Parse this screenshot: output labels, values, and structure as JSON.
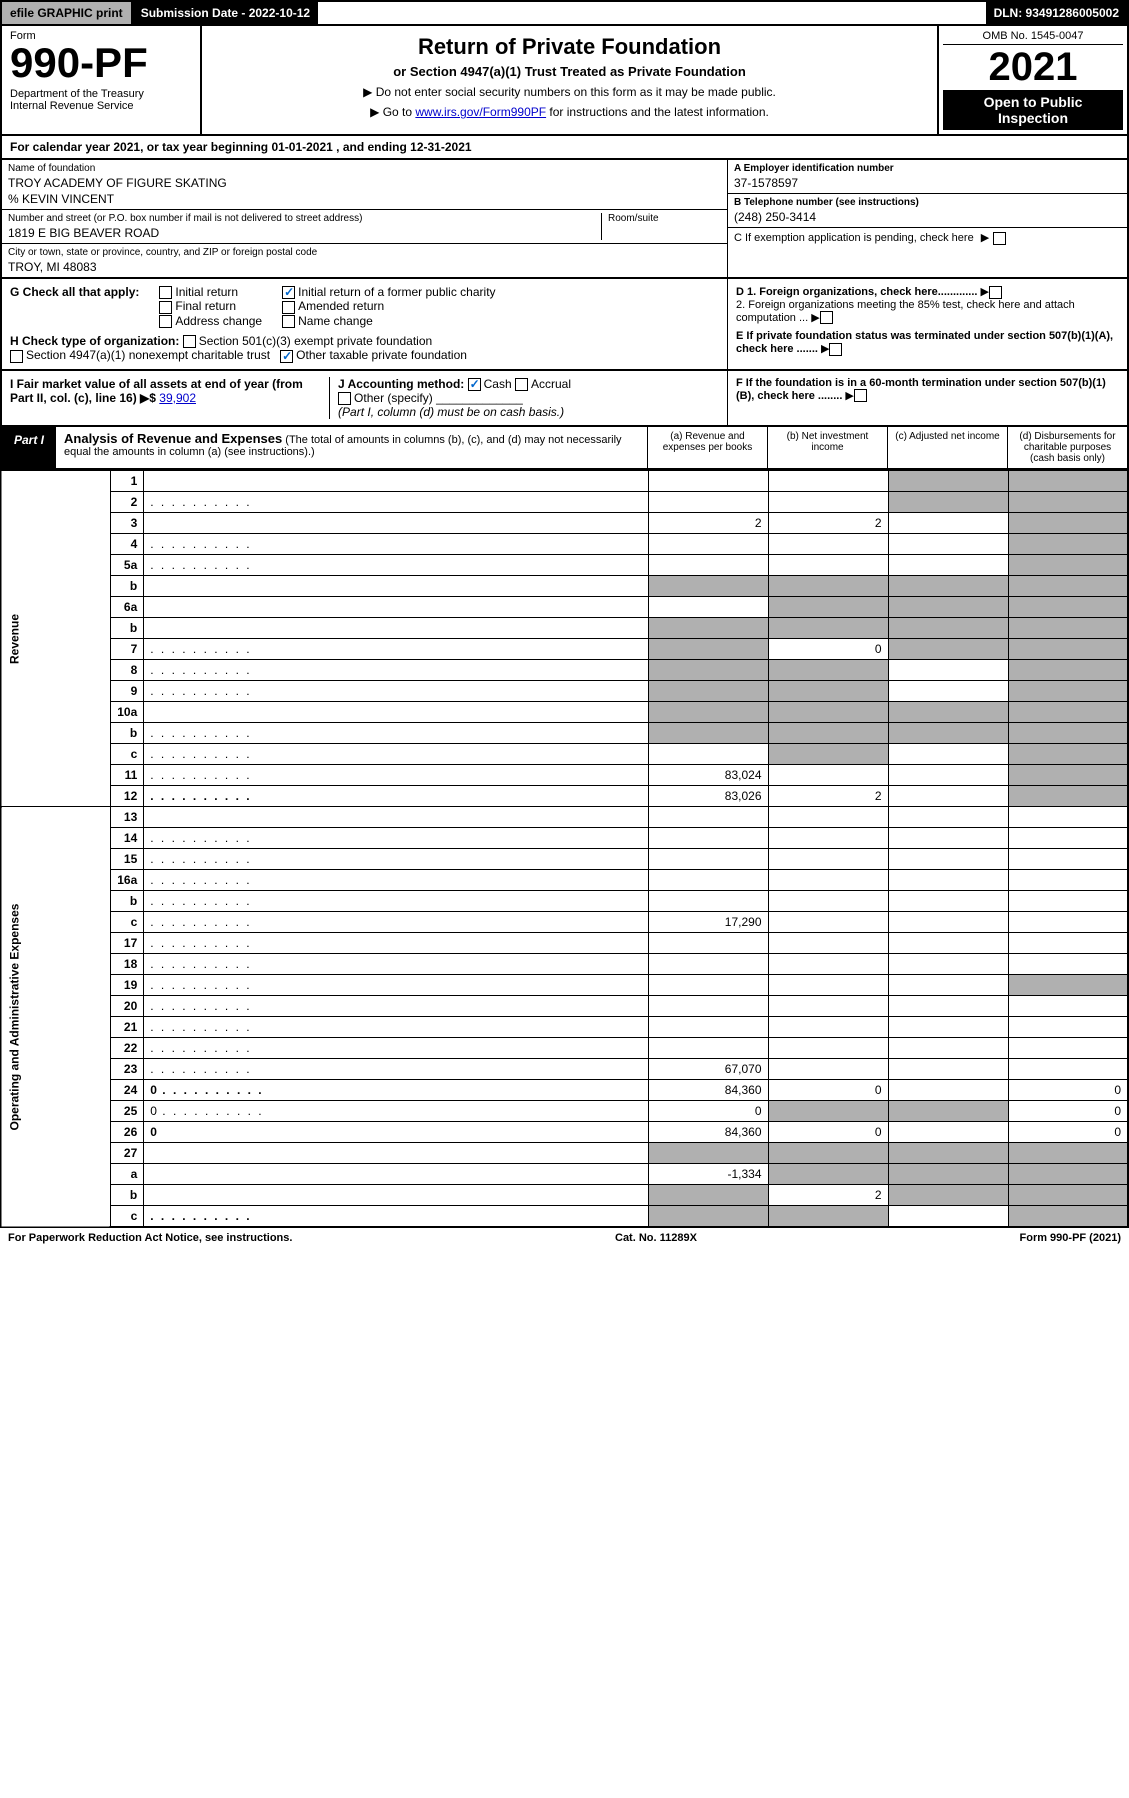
{
  "topbar": {
    "efile": "efile GRAPHIC print",
    "submission": "Submission Date - 2022-10-12",
    "dln": "DLN: 93491286005002"
  },
  "header": {
    "form_label": "Form",
    "form_number": "990-PF",
    "dept": "Department of the Treasury\nInternal Revenue Service",
    "title": "Return of Private Foundation",
    "subtitle": "or Section 4947(a)(1) Trust Treated as Private Foundation",
    "note1": "▶ Do not enter social security numbers on this form as it may be made public.",
    "note2_pre": "▶ Go to ",
    "note2_link": "www.irs.gov/Form990PF",
    "note2_post": " for instructions and the latest information.",
    "omb": "OMB No. 1545-0047",
    "year": "2021",
    "open": "Open to Public Inspection"
  },
  "calyear": "For calendar year 2021, or tax year beginning 01-01-2021            , and ending 12-31-2021",
  "info": {
    "name_lbl": "Name of foundation",
    "name_val": "TROY ACADEMY OF FIGURE SKATING",
    "care_of": "% KEVIN VINCENT",
    "street_lbl": "Number and street (or P.O. box number if mail is not delivered to street address)",
    "street_val": "1819 E BIG BEAVER ROAD",
    "room_lbl": "Room/suite",
    "city_lbl": "City or town, state or province, country, and ZIP or foreign postal code",
    "city_val": "TROY, MI  48083",
    "ein_lbl": "A Employer identification number",
    "ein_val": "37-1578597",
    "tel_lbl": "B Telephone number (see instructions)",
    "tel_val": "(248) 250-3414",
    "c_lbl": "C If exemption application is pending, check here",
    "d1_lbl": "D 1. Foreign organizations, check here.............",
    "d2_lbl": "2. Foreign organizations meeting the 85% test, check here and attach computation ...",
    "e_lbl": "E If private foundation status was terminated under section 507(b)(1)(A), check here .......",
    "f_lbl": "F If the foundation is in a 60-month termination under section 507(b)(1)(B), check here ........"
  },
  "g": {
    "lbl": "G Check all that apply:",
    "opts": [
      "Initial return",
      "Final return",
      "Address change",
      "Initial return of a former public charity",
      "Amended return",
      "Name change"
    ]
  },
  "h": {
    "lbl": "H Check type of organization:",
    "opt1": "Section 501(c)(3) exempt private foundation",
    "opt2": "Section 4947(a)(1) nonexempt charitable trust",
    "opt3": "Other taxable private foundation"
  },
  "i": {
    "lbl": "I Fair market value of all assets at end of year (from Part II, col. (c), line 16) ▶$",
    "val": "39,902"
  },
  "j": {
    "lbl": "J Accounting method:",
    "opts": [
      "Cash",
      "Accrual",
      "Other (specify)"
    ],
    "note": "(Part I, column (d) must be on cash basis.)"
  },
  "part1": {
    "label": "Part I",
    "title": "Analysis of Revenue and Expenses",
    "desc": "(The total of amounts in columns (b), (c), and (d) may not necessarily equal the amounts in column (a) (see instructions).)",
    "col_a": "(a) Revenue and expenses per books",
    "col_b": "(b) Net investment income",
    "col_c": "(c) Adjusted net income",
    "col_d": "(d) Disbursements for charitable purposes (cash basis only)"
  },
  "vert_rev": "Revenue",
  "vert_exp": "Operating and Administrative Expenses",
  "rows": [
    {
      "n": "1",
      "d": "",
      "a": "",
      "b": "",
      "c": "",
      "cg": true,
      "dg": true
    },
    {
      "n": "2",
      "d": "",
      "dots": true,
      "a": "",
      "b": "",
      "c": "",
      "cg": true,
      "dg": true,
      "bold_not": true
    },
    {
      "n": "3",
      "d": "",
      "a": "2",
      "b": "2",
      "c": "",
      "dg": true
    },
    {
      "n": "4",
      "d": "",
      "dots": true,
      "a": "",
      "b": "",
      "c": "",
      "dg": true
    },
    {
      "n": "5a",
      "d": "",
      "dots": true,
      "a": "",
      "b": "",
      "c": "",
      "dg": true
    },
    {
      "n": "b",
      "d": "",
      "a": "",
      "b": "",
      "c": "",
      "ag": true,
      "bg": true,
      "cg": true,
      "dg": true
    },
    {
      "n": "6a",
      "d": "",
      "a": "",
      "b": "",
      "c": "",
      "bg": true,
      "cg": true,
      "dg": true
    },
    {
      "n": "b",
      "d": "",
      "a": "",
      "b": "",
      "c": "",
      "ag": true,
      "bg": true,
      "cg": true,
      "dg": true
    },
    {
      "n": "7",
      "d": "",
      "dots": true,
      "a": "",
      "b": "0",
      "c": "",
      "ag": true,
      "cg": true,
      "dg": true
    },
    {
      "n": "8",
      "d": "",
      "dots": true,
      "a": "",
      "b": "",
      "c": "",
      "ag": true,
      "bg": true,
      "dg": true
    },
    {
      "n": "9",
      "d": "",
      "dots": true,
      "a": "",
      "b": "",
      "c": "",
      "ag": true,
      "bg": true,
      "dg": true
    },
    {
      "n": "10a",
      "d": "",
      "a": "",
      "b": "",
      "c": "",
      "ag": true,
      "bg": true,
      "cg": true,
      "dg": true
    },
    {
      "n": "b",
      "d": "",
      "dots": true,
      "a": "",
      "b": "",
      "c": "",
      "ag": true,
      "bg": true,
      "cg": true,
      "dg": true
    },
    {
      "n": "c",
      "d": "",
      "dots": true,
      "a": "",
      "b": "",
      "c": "",
      "bg": true,
      "dg": true
    },
    {
      "n": "11",
      "d": "",
      "dots": true,
      "a": "83,024",
      "b": "",
      "c": "",
      "dg": true
    },
    {
      "n": "12",
      "d": "",
      "dots": true,
      "a": "83,026",
      "b": "2",
      "c": "",
      "dg": true,
      "bold": true
    },
    {
      "n": "13",
      "d": "",
      "a": "",
      "b": "",
      "c": ""
    },
    {
      "n": "14",
      "d": "",
      "dots": true,
      "a": "",
      "b": "",
      "c": ""
    },
    {
      "n": "15",
      "d": "",
      "dots": true,
      "a": "",
      "b": "",
      "c": ""
    },
    {
      "n": "16a",
      "d": "",
      "dots": true,
      "a": "",
      "b": "",
      "c": ""
    },
    {
      "n": "b",
      "d": "",
      "dots": true,
      "a": "",
      "b": "",
      "c": ""
    },
    {
      "n": "c",
      "d": "",
      "dots": true,
      "a": "17,290",
      "b": "",
      "c": ""
    },
    {
      "n": "17",
      "d": "",
      "dots": true,
      "a": "",
      "b": "",
      "c": ""
    },
    {
      "n": "18",
      "d": "",
      "dots": true,
      "a": "",
      "b": "",
      "c": ""
    },
    {
      "n": "19",
      "d": "",
      "dots": true,
      "a": "",
      "b": "",
      "c": "",
      "dg": true
    },
    {
      "n": "20",
      "d": "",
      "dots": true,
      "a": "",
      "b": "",
      "c": ""
    },
    {
      "n": "21",
      "d": "",
      "dots": true,
      "a": "",
      "b": "",
      "c": ""
    },
    {
      "n": "22",
      "d": "",
      "dots": true,
      "a": "",
      "b": "",
      "c": ""
    },
    {
      "n": "23",
      "d": "",
      "dots": true,
      "a": "67,070",
      "b": "",
      "c": ""
    },
    {
      "n": "24",
      "d": "0",
      "dots": true,
      "a": "84,360",
      "b": "0",
      "c": "",
      "bold": true
    },
    {
      "n": "25",
      "d": "0",
      "dots": true,
      "a": "0",
      "b": "",
      "c": "",
      "bg": true,
      "cg": true
    },
    {
      "n": "26",
      "d": "0",
      "a": "84,360",
      "b": "0",
      "c": "",
      "bold": true
    },
    {
      "n": "27",
      "d": "",
      "a": "",
      "b": "",
      "c": "",
      "ag": true,
      "bg": true,
      "cg": true,
      "dg": true
    },
    {
      "n": "a",
      "d": "",
      "a": "-1,334",
      "b": "",
      "c": "",
      "bg": true,
      "cg": true,
      "dg": true,
      "bold": true
    },
    {
      "n": "b",
      "d": "",
      "a": "",
      "b": "2",
      "c": "",
      "ag": true,
      "cg": true,
      "dg": true,
      "bold": true
    },
    {
      "n": "c",
      "d": "",
      "dots": true,
      "a": "",
      "b": "",
      "c": "",
      "ag": true,
      "bg": true,
      "dg": true,
      "bold": true
    }
  ],
  "footer": {
    "left": "For Paperwork Reduction Act Notice, see instructions.",
    "mid": "Cat. No. 11289X",
    "right": "Form 990-PF (2021)"
  }
}
